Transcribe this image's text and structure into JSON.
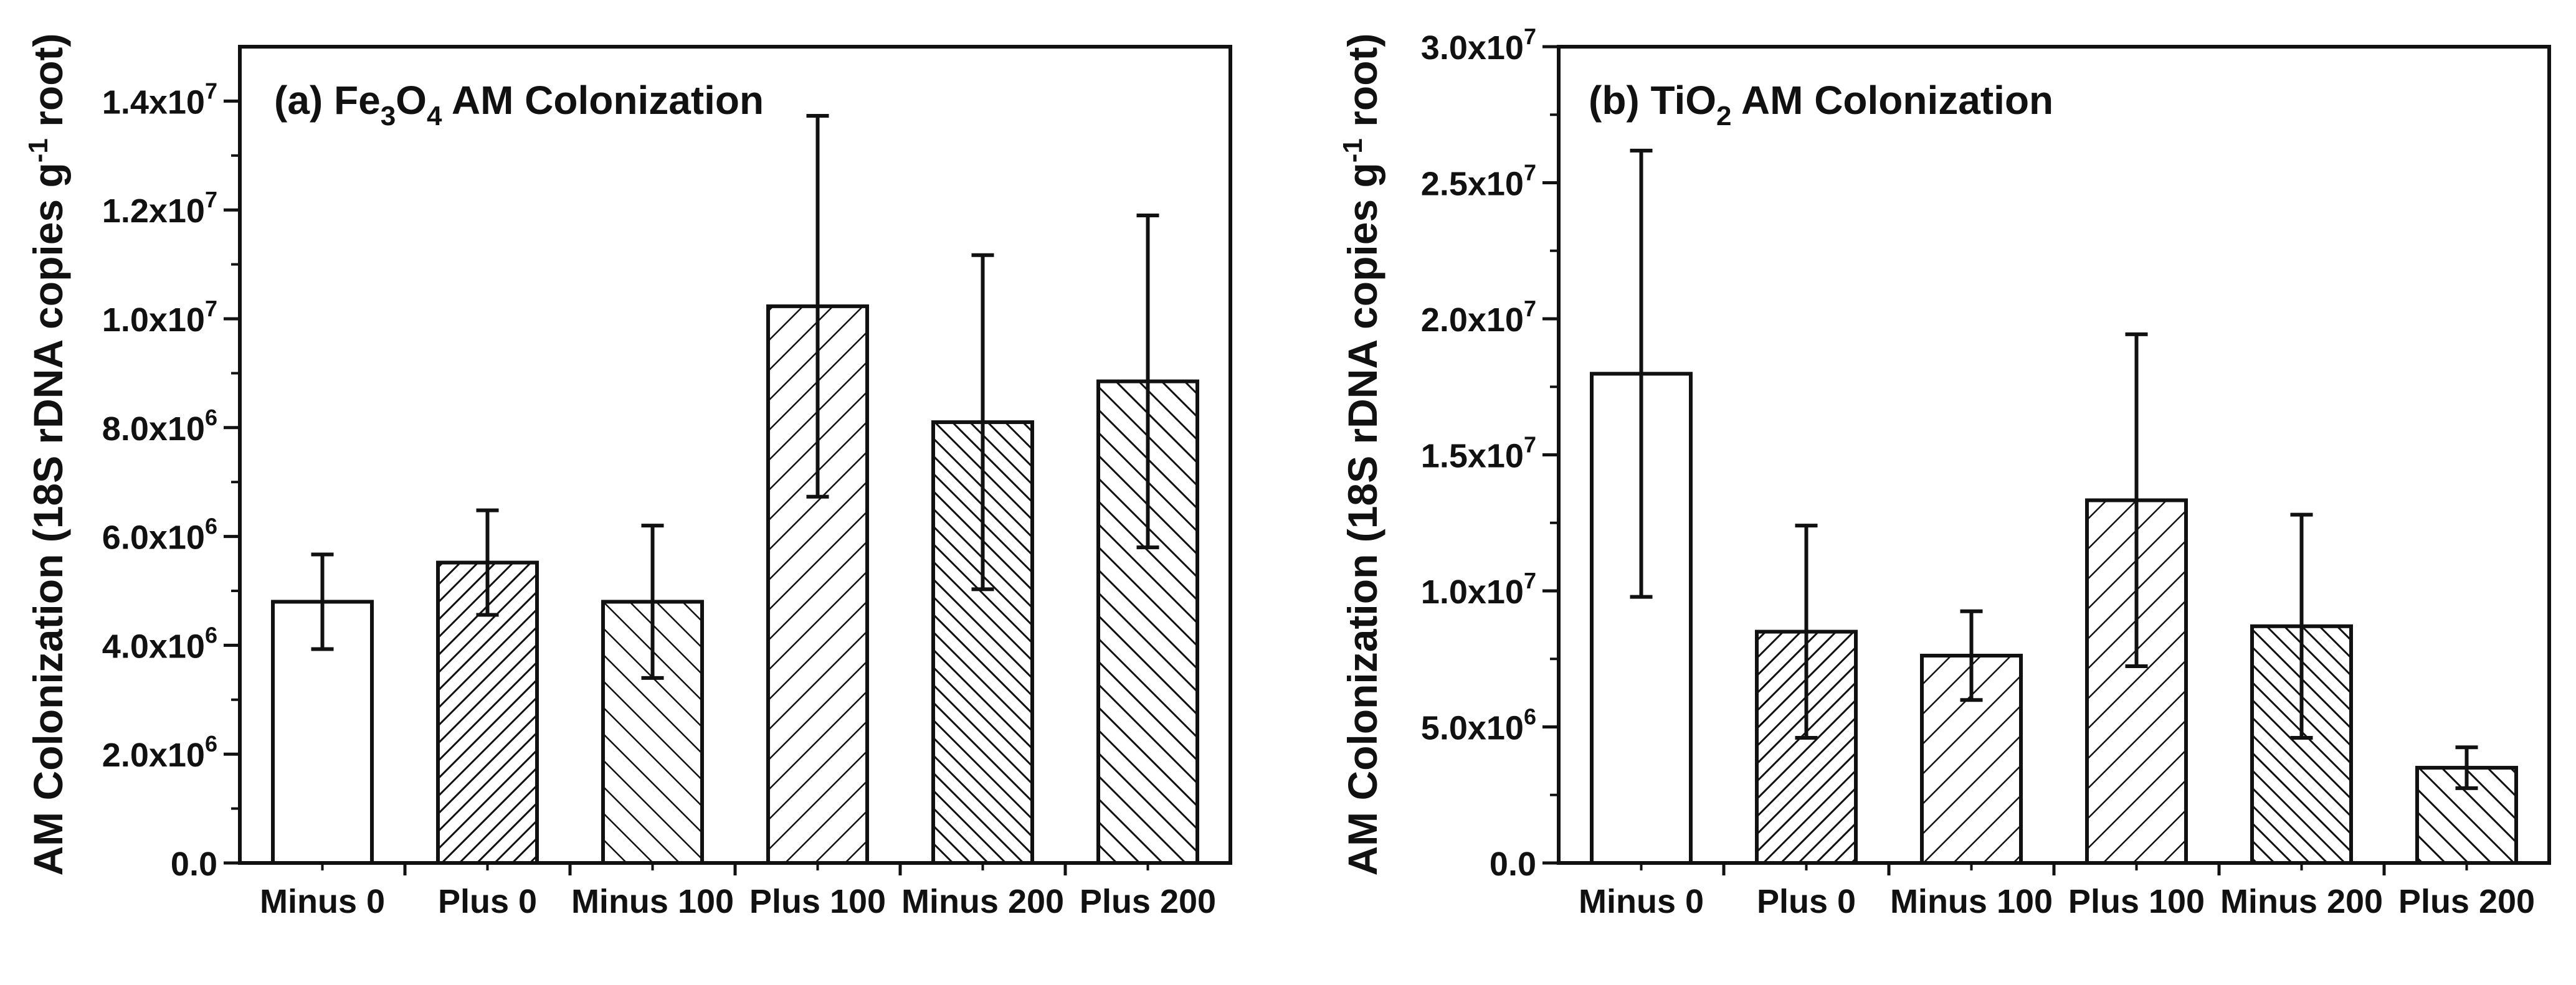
{
  "chart_data": [
    {
      "type": "bar",
      "title": "(a) Fe3O4 AM Colonization",
      "title_parts": {
        "prefix": "(a) Fe",
        "sub1": "3",
        "mid": "O",
        "sub2": "4",
        "suffix": " AM Colonization"
      },
      "ylabel": "AM Colonization  (18S rDNA copies g-1 root)",
      "xlabel": "",
      "categories": [
        "Minus 0",
        "Plus 0",
        "Minus 100",
        "Plus 100",
        "Minus 200",
        "Plus 200"
      ],
      "values": [
        4800000,
        5520000,
        4800000,
        10230000,
        8100000,
        8850000
      ],
      "errors": [
        870000,
        960000,
        1400000,
        3500000,
        3070000,
        3050000
      ],
      "ylim": [
        0,
        15000000
      ],
      "ytick_values": [
        0,
        2000000,
        4000000,
        6000000,
        8000000,
        10000000,
        12000000,
        14000000
      ],
      "ytick_labels": [
        {
          "mant": "0.0",
          "exp": ""
        },
        {
          "mant": "2.0x10",
          "exp": "6"
        },
        {
          "mant": "4.0x10",
          "exp": "6"
        },
        {
          "mant": "6.0x10",
          "exp": "6"
        },
        {
          "mant": "8.0x10",
          "exp": "6"
        },
        {
          "mant": "1.0x10",
          "exp": "7"
        },
        {
          "mant": "1.2x10",
          "exp": "7"
        },
        {
          "mant": "1.4x10",
          "exp": "7"
        }
      ],
      "patterns": [
        "none",
        "dense-up",
        "sparse-down",
        "sparse-up",
        "dense-down",
        "medium-down"
      ],
      "colors": {
        "fill": "#ffffff",
        "stroke": "#111111"
      }
    },
    {
      "type": "bar",
      "title": "(b) TiO2 AM Colonization",
      "title_parts": {
        "prefix": "(b) TiO",
        "sub1": "2",
        "mid": "",
        "sub2": "",
        "suffix": " AM Colonization"
      },
      "ylabel": "AM Colonization  (18S rDNA copies g-1 root)",
      "xlabel": "",
      "categories": [
        "Minus 0",
        "Plus 0",
        "Minus 100",
        "Plus 100",
        "Minus 200",
        "Plus 200"
      ],
      "values": [
        17980000,
        8500000,
        7620000,
        13330000,
        8700000,
        3500000
      ],
      "errors": [
        8200000,
        3900000,
        1630000,
        6100000,
        4100000,
        750000
      ],
      "ylim": [
        0,
        30000000
      ],
      "ytick_values": [
        0,
        5000000,
        10000000,
        15000000,
        20000000,
        25000000,
        30000000
      ],
      "ytick_labels": [
        {
          "mant": "0.0",
          "exp": ""
        },
        {
          "mant": "5.0x10",
          "exp": "6"
        },
        {
          "mant": "1.0x10",
          "exp": "7"
        },
        {
          "mant": "1.5x10",
          "exp": "7"
        },
        {
          "mant": "2.0x10",
          "exp": "7"
        },
        {
          "mant": "2.5x10",
          "exp": "7"
        },
        {
          "mant": "3.0x10",
          "exp": "7"
        }
      ],
      "patterns": [
        "none",
        "dense-up",
        "sparse-up",
        "sparse-up",
        "dense-down",
        "medium-down"
      ],
      "colors": {
        "fill": "#ffffff",
        "stroke": "#111111"
      }
    }
  ]
}
